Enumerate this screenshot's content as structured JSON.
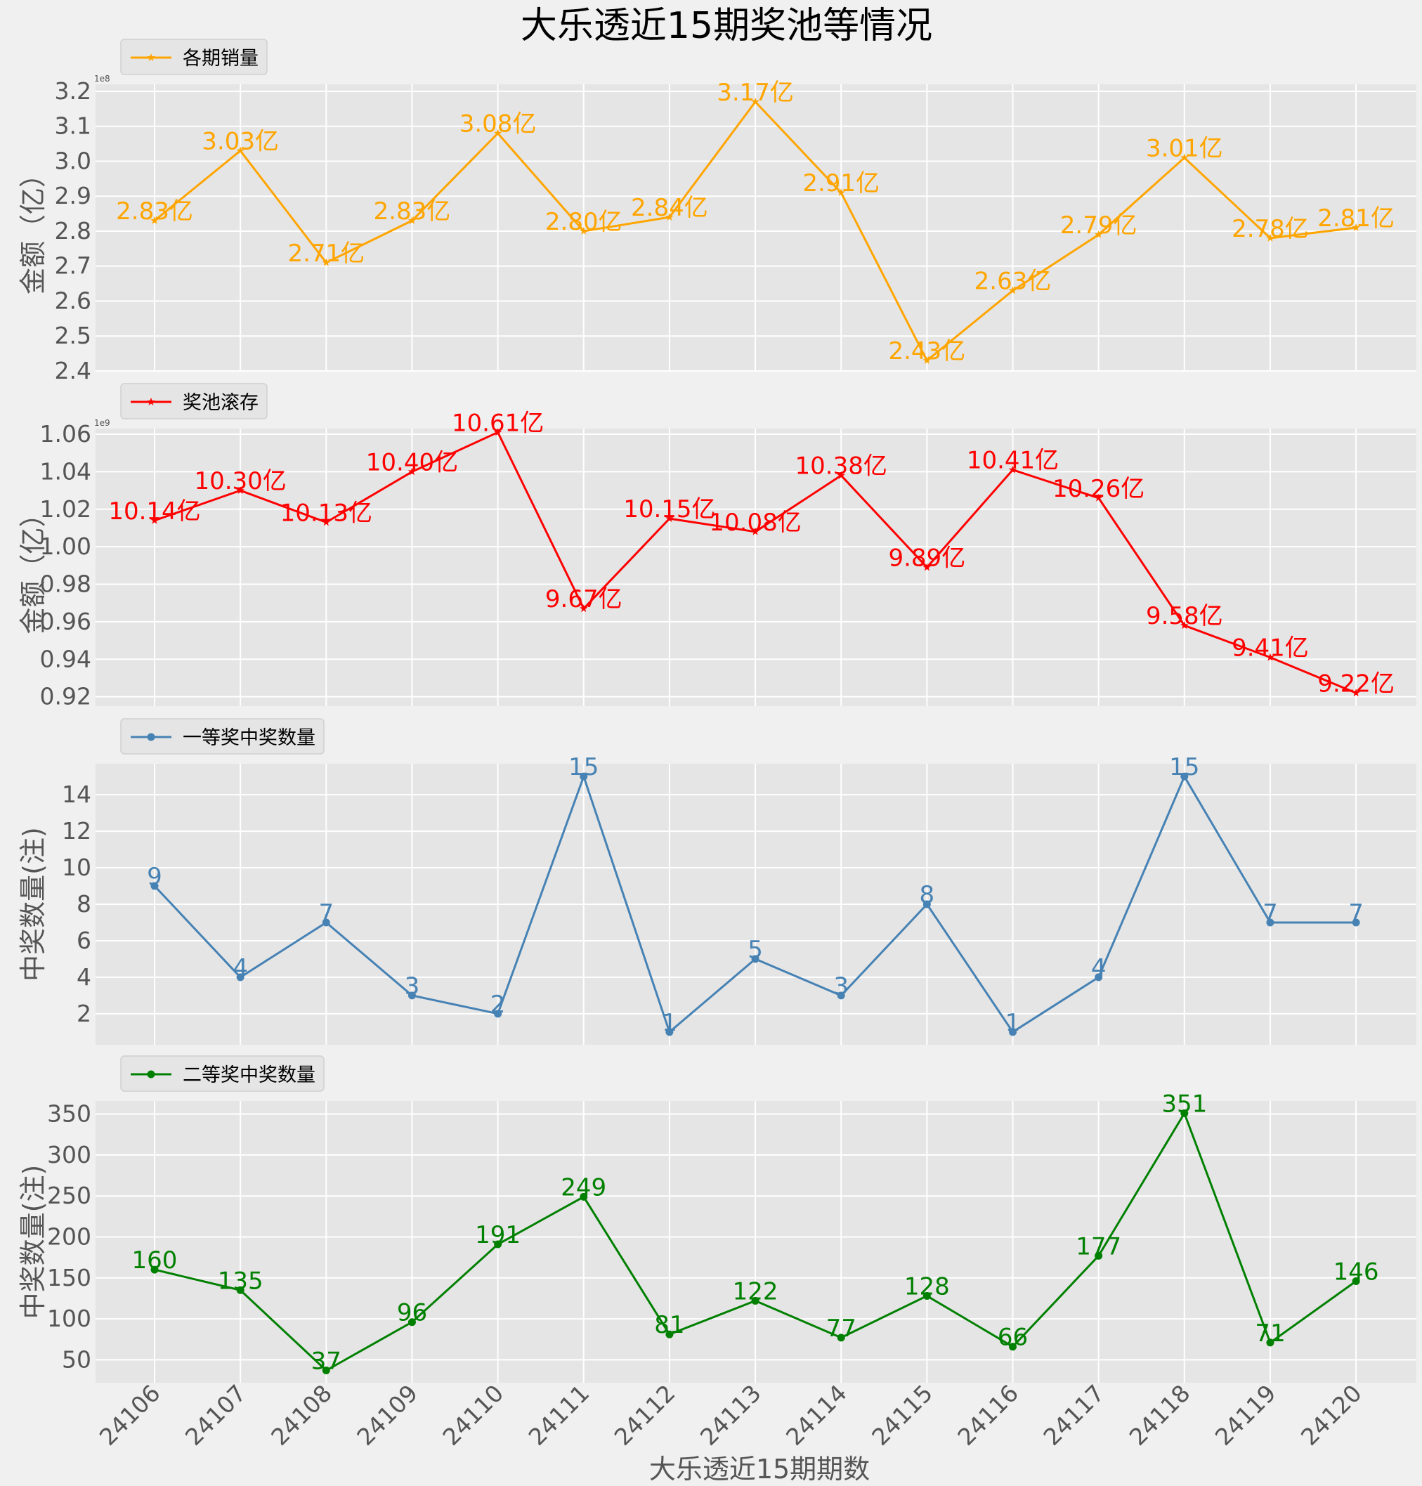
{
  "title": "大乐透近15期奖池等情况",
  "xlabel": "大乐透近15期期数",
  "chart_data": [
    {
      "type": "line",
      "legend": "各期销量",
      "ylabel": "金额（亿）",
      "color": "#FFA500",
      "marker": "star",
      "scale_note": "1e8",
      "yticks": [
        "3.2",
        "3.1",
        "3.0",
        "2.9",
        "2.8",
        "2.7",
        "2.6",
        "2.5",
        "2.4"
      ],
      "ylim": [
        240000000,
        322000000
      ],
      "tick_values": [
        320000000,
        310000000,
        300000000,
        290000000,
        280000000,
        270000000,
        260000000,
        250000000,
        240000000
      ],
      "categories": [
        "24106",
        "24107",
        "24108",
        "24109",
        "24110",
        "24111",
        "24112",
        "24113",
        "24114",
        "24115",
        "24116",
        "24117",
        "24118",
        "24119",
        "24120"
      ],
      "values": [
        283000000,
        303000000,
        271000000,
        283000000,
        308000000,
        280000000,
        284000000,
        317000000,
        291000000,
        243000000,
        263000000,
        279000000,
        301000000,
        278000000,
        281000000
      ],
      "labels": [
        "2.83亿",
        "3.03亿",
        "2.71亿",
        "2.83亿",
        "3.08亿",
        "2.80亿",
        "2.84亿",
        "3.17亿",
        "2.91亿",
        "2.43亿",
        "2.63亿",
        "2.79亿",
        "3.01亿",
        "2.78亿",
        "2.81亿"
      ]
    },
    {
      "type": "line",
      "legend": "奖池滚存",
      "ylabel": "金额（亿）",
      "color": "#FF0000",
      "marker": "star",
      "scale_note": "1e9",
      "yticks": [
        "1.06",
        "1.04",
        "1.02",
        "1.00",
        "0.98",
        "0.96",
        "0.94",
        "0.92"
      ],
      "ylim": [
        915000000,
        1063000000
      ],
      "tick_values": [
        1060000000,
        1040000000,
        1020000000,
        1000000000,
        980000000,
        960000000,
        940000000,
        920000000
      ],
      "categories": [
        "24106",
        "24107",
        "24108",
        "24109",
        "24110",
        "24111",
        "24112",
        "24113",
        "24114",
        "24115",
        "24116",
        "24117",
        "24118",
        "24119",
        "24120"
      ],
      "values": [
        1014000000,
        1030000000,
        1013000000,
        1040000000,
        1061000000,
        967000000,
        1015000000,
        1008000000,
        1038000000,
        989000000,
        1041000000,
        1026000000,
        958000000,
        941000000,
        922000000
      ],
      "labels": [
        "10.14亿",
        "10.30亿",
        "10.13亿",
        "10.40亿",
        "10.61亿",
        "9.67亿",
        "10.15亿",
        "10.08亿",
        "10.38亿",
        "9.89亿",
        "10.41亿",
        "10.26亿",
        "9.58亿",
        "9.41亿",
        "9.22亿"
      ]
    },
    {
      "type": "line",
      "legend": "一等奖中奖数量",
      "ylabel": "中奖数量(注)",
      "color": "#4682B4",
      "marker": "circle",
      "yticks": [
        "14",
        "12",
        "10",
        "8",
        "6",
        "4",
        "2"
      ],
      "ylim": [
        0.3,
        15.7
      ],
      "tick_values": [
        14,
        12,
        10,
        8,
        6,
        4,
        2
      ],
      "categories": [
        "24106",
        "24107",
        "24108",
        "24109",
        "24110",
        "24111",
        "24112",
        "24113",
        "24114",
        "24115",
        "24116",
        "24117",
        "24118",
        "24119",
        "24120"
      ],
      "values": [
        9,
        4,
        7,
        3,
        2,
        15,
        1,
        5,
        3,
        8,
        1,
        4,
        15,
        7,
        7
      ],
      "labels": [
        "9",
        "4",
        "7",
        "3",
        "2",
        "15",
        "1",
        "5",
        "3",
        "8",
        "1",
        "4",
        "15",
        "7",
        "7"
      ]
    },
    {
      "type": "line",
      "legend": "二等奖中奖数量",
      "ylabel": "中奖数量(注)",
      "color": "#008000",
      "marker": "circle",
      "yticks": [
        "350",
        "300",
        "250",
        "200",
        "150",
        "100",
        "50"
      ],
      "ylim": [
        22,
        366
      ],
      "tick_values": [
        350,
        300,
        250,
        200,
        150,
        100,
        50
      ],
      "categories": [
        "24106",
        "24107",
        "24108",
        "24109",
        "24110",
        "24111",
        "24112",
        "24113",
        "24114",
        "24115",
        "24116",
        "24117",
        "24118",
        "24119",
        "24120"
      ],
      "values": [
        160,
        135,
        37,
        96,
        191,
        249,
        81,
        122,
        77,
        128,
        66,
        177,
        351,
        71,
        146
      ],
      "labels": [
        "160",
        "135",
        "37",
        "96",
        "191",
        "249",
        "81",
        "122",
        "77",
        "128",
        "66",
        "177",
        "351",
        "71",
        "146"
      ]
    }
  ]
}
